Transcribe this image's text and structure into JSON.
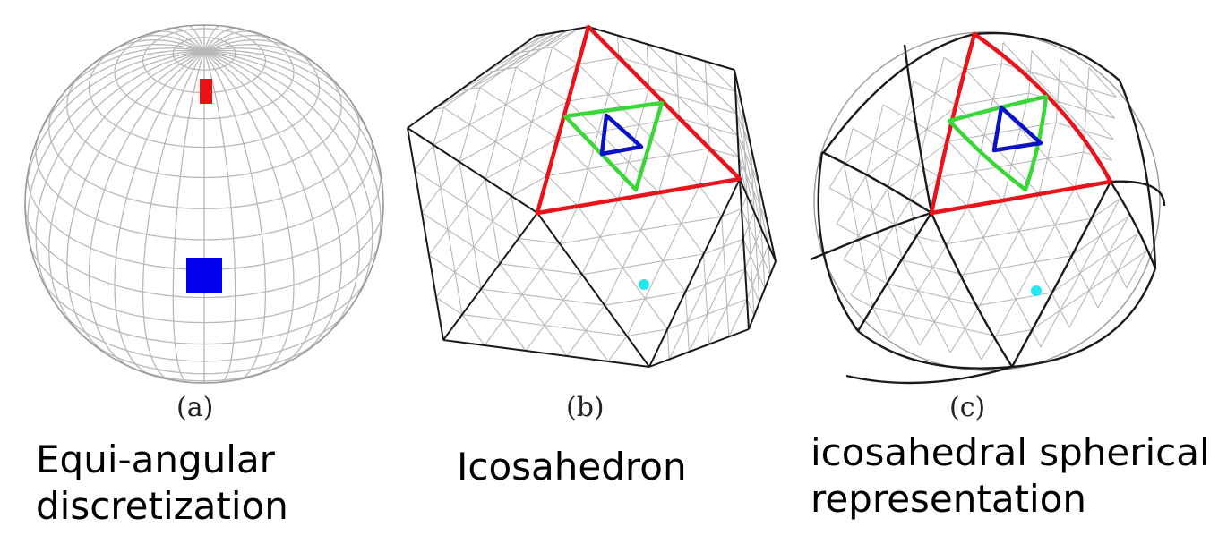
{
  "panels": [
    {
      "letter": "(a)",
      "caption_line1": "Equi-angular",
      "caption_line2": "discretization"
    },
    {
      "letter": "(b)",
      "caption_line1": "Icosahedron",
      "caption_line2": ""
    },
    {
      "letter": "(c)",
      "caption_line1": "icosahedral spherical",
      "caption_line2": "representation"
    }
  ],
  "colors": {
    "grid": "#b8b8b8",
    "edge": "#1a1a1a",
    "outer_triangle": "#e8141c",
    "middle_triangle": "#3ad63a",
    "inner_triangle": "#0a12c8",
    "pole_patch": "#ee1111",
    "equator_patch": "#0000ee",
    "dot": "#22e6f0"
  }
}
